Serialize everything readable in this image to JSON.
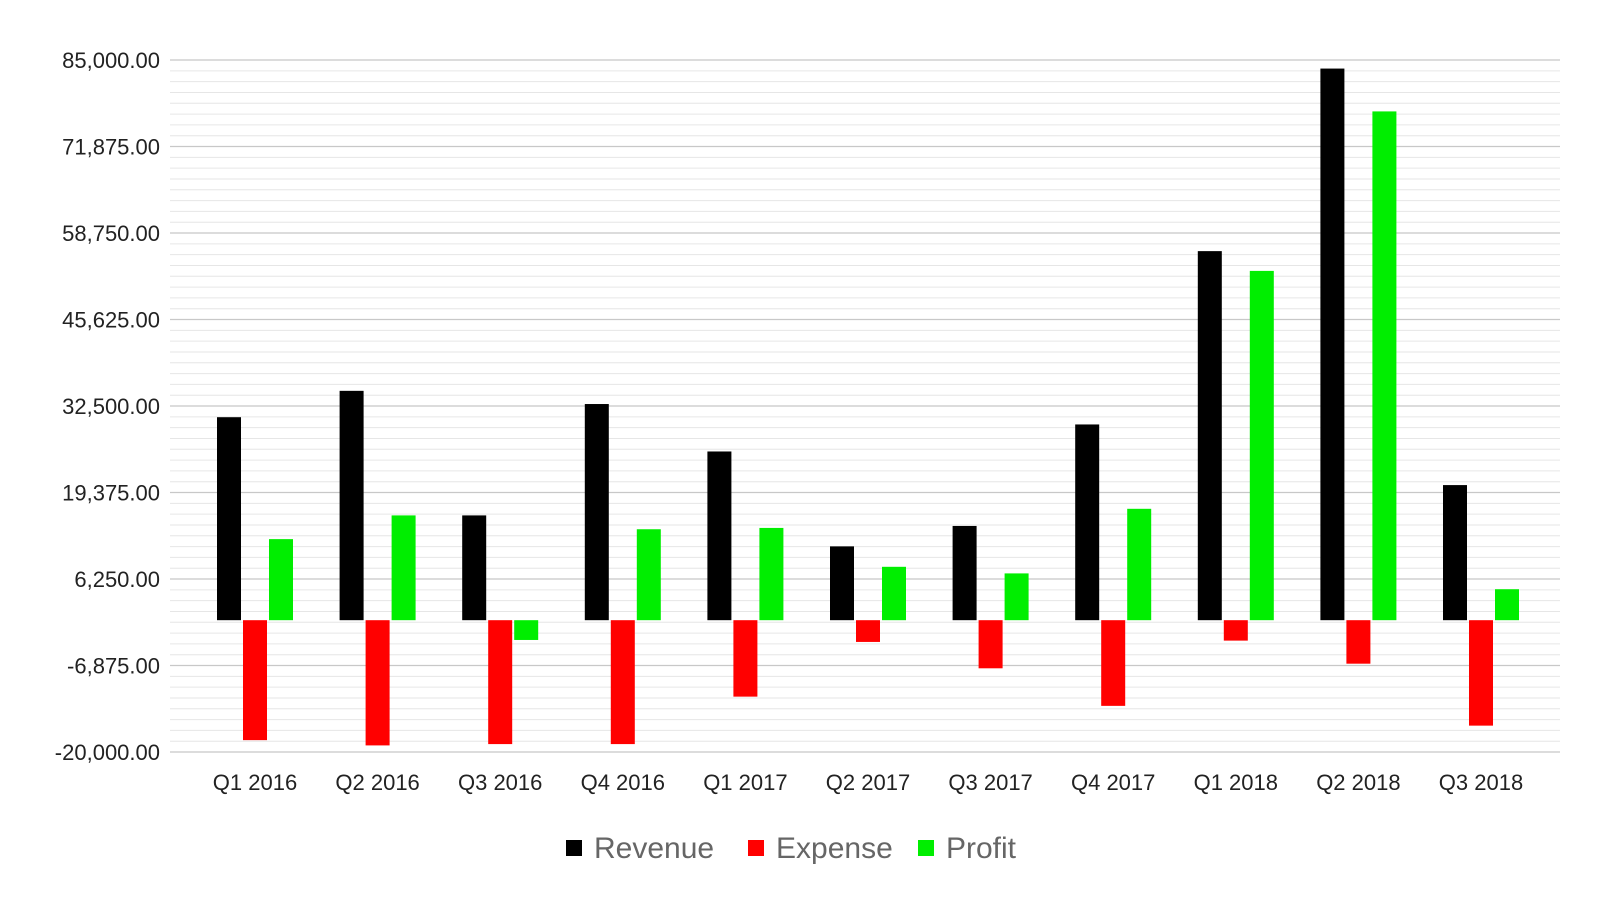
{
  "chart_data": {
    "type": "bar",
    "title": "",
    "xlabel": "",
    "ylabel": "",
    "ylim": [
      -20000,
      85000
    ],
    "y_ticks": [
      85000,
      71875,
      58750,
      45625,
      32500,
      19375,
      6250,
      -6875,
      -20000
    ],
    "y_tick_labels": [
      "85,000.00",
      "71,875.00",
      "58,750.00",
      "45,625.00",
      "32,500.00",
      "19,375.00",
      "6,250.00",
      "-6,875.00",
      "-20,000.00"
    ],
    "minor_gridlines_per_major": 8,
    "grid": true,
    "legend_position": "bottom-center",
    "categories": [
      "Q1 2016",
      "Q2 2016",
      "Q3 2016",
      "Q4 2016",
      "Q1 2017",
      "Q2 2017",
      "Q3 2017",
      "Q4 2017",
      "Q1 2018",
      "Q2 2018",
      "Q3 2018"
    ],
    "series": [
      {
        "name": "Revenue",
        "color": "#000000",
        "values": [
          30800,
          34800,
          15900,
          32800,
          25600,
          11200,
          14300,
          29700,
          56000,
          83700,
          20500
        ]
      },
      {
        "name": "Expense",
        "color": "#ff0000",
        "values": [
          -18200,
          -19000,
          -18800,
          -18800,
          -11600,
          -3300,
          -7300,
          -13000,
          -3100,
          -6600,
          -16000
        ]
      },
      {
        "name": "Profit",
        "color": "#00ee00",
        "values": [
          12300,
          15900,
          -3000,
          13800,
          14000,
          8100,
          7100,
          16900,
          53000,
          77200,
          4700
        ]
      }
    ]
  }
}
